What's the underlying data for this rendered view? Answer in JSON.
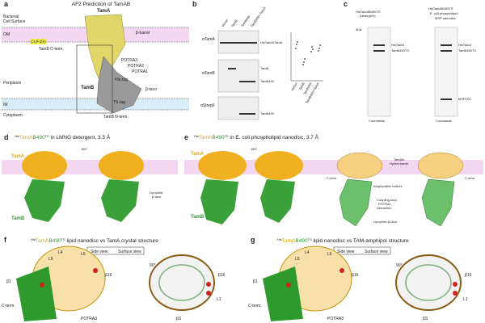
{
  "panels": {
    "a": {
      "letter": "a",
      "title": "AF2 Prediction of TamAB",
      "regions": [
        "Bacterial",
        "Cell Surface",
        "OM",
        "Periplasm",
        "IM",
        "Cytoplasm"
      ],
      "labels": [
        "TamA",
        "β-barrel",
        "TamB C-term.",
        "POTRA3",
        "POTRA2",
        "POTRA1",
        "DUF490",
        "His-tag",
        "TamB",
        "β-taco",
        "TS-tag",
        "TamB N-term."
      ]
    },
    "b": {
      "letter": "b",
      "blots": [
        "αTamA",
        "αTamB",
        "αStrepII"
      ],
      "lanes": [
        "Vector",
        "TamB",
        "TamB490",
        "TamB490+TamA"
      ],
      "bands": [
        "HisTamA/TamA",
        "TamB",
        "TamB490",
        "TamB490"
      ],
      "plot_lanes": [
        "Vector",
        "TamB",
        "TamB490",
        "TamB490+TamA"
      ]
    },
    "c": {
      "letter": "c",
      "gel1_title": [
        "HisTamAB490TS",
        "(detergent)"
      ],
      "gel2_title": [
        "HisTamAB490TS",
        "E. coli phospholipid",
        "MSP nanodisc"
      ],
      "kda": "kDa",
      "bands": [
        "HisTamA",
        "TamB490TS",
        "MSP1D1"
      ],
      "stain": "Coomassie"
    },
    "d": {
      "letter": "d",
      "title": {
        "sup1": "His",
        "a": "TamA",
        "b": "B490",
        "sup2": "TS",
        "rest": " in LMNG detergent, 3.5 Å"
      },
      "labels": [
        "TamA",
        "TamB",
        "180°",
        "Lipophilic",
        "β-taco"
      ]
    },
    "e": {
      "letter": "e",
      "title": {
        "sup1": "His",
        "a": "TamA",
        "b": "B490",
        "sup2": "TS",
        "rest": " in E. coli phospholipid nanodisc, 3.7 Å"
      },
      "labels": [
        "TamA",
        "TamB",
        "180°",
        "TamAB",
        "Hybrid-barrel",
        "C-term.",
        "C-term.",
        "Amphipathic helices",
        "Coupling-loop:",
        "POTRA1",
        "interaction",
        "Lipophilic β-taco"
      ]
    },
    "f": {
      "letter": "f",
      "title": {
        "sup1": "His",
        "a": "TamA",
        "b": "B490",
        "sup2": "TS",
        "rest": " lipid nanodisc vs TamA crystal structure"
      },
      "views": [
        "Side view",
        "Surface view"
      ],
      "labels": [
        "L4",
        "L6",
        "L5",
        "β1",
        "β16",
        "C-term.",
        "POTRA3",
        "β16",
        "L1",
        "βS",
        "90°"
      ]
    },
    "g": {
      "letter": "g",
      "title": {
        "sup1": "His",
        "a": "TamA",
        "b": "B490",
        "sup2": "TS",
        "rest": " lipid nanodisc vs TAM-amphipol structure"
      },
      "views": [
        "Side view",
        "Surface view"
      ],
      "labels": [
        "L4",
        "L6",
        "L5",
        "β1",
        "β16",
        "C-term.",
        "POTRA3",
        "β16",
        "L1",
        "βS",
        "90°"
      ]
    }
  }
}
